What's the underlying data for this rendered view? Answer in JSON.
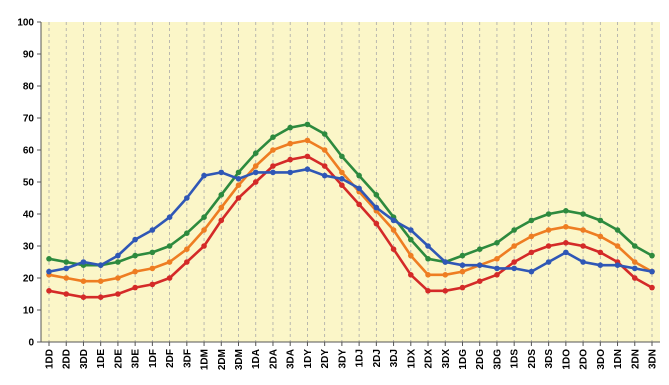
{
  "chart_data": {
    "type": "line",
    "title": "",
    "xlabel": "",
    "ylabel": "",
    "ylim": [
      0,
      100
    ],
    "yticks": [
      0,
      10,
      20,
      30,
      40,
      50,
      60,
      70,
      80,
      90,
      100
    ],
    "grid": "vertical dashed only",
    "legend": "none",
    "plot_background": "#fbf6c8",
    "categories": [
      "1DD",
      "2DD",
      "3DD",
      "1DE",
      "2DE",
      "3DE",
      "1DF",
      "2DF",
      "3DF",
      "1DM",
      "2DM",
      "3DM",
      "1DA",
      "2DA",
      "3DA",
      "1DY",
      "2DY",
      "3DY",
      "1DJ",
      "2DJ",
      "3DJ",
      "1DX",
      "2DX",
      "3DX",
      "1DG",
      "2DG",
      "3DG",
      "1DS",
      "2DS",
      "3DS",
      "1DO",
      "2DO",
      "3DO",
      "1DN",
      "2DN",
      "3DN"
    ],
    "series": [
      {
        "color": "#2d8a3e",
        "values": [
          26,
          25,
          24,
          24,
          25,
          27,
          28,
          30,
          34,
          39,
          46,
          53,
          59,
          64,
          67,
          68,
          65,
          58,
          52,
          46,
          39,
          32,
          26,
          25,
          27,
          29,
          31,
          35,
          38,
          40,
          41,
          40,
          38,
          35,
          30,
          27
        ]
      },
      {
        "color": "#ee7d22",
        "values": [
          21,
          20,
          19,
          19,
          20,
          22,
          23,
          25,
          29,
          35,
          42,
          49,
          55,
          60,
          62,
          63,
          60,
          53,
          47,
          41,
          35,
          27,
          21,
          21,
          22,
          24,
          26,
          30,
          33,
          35,
          36,
          35,
          33,
          30,
          25,
          22
        ]
      },
      {
        "color": "#d42a28",
        "values": [
          16,
          15,
          14,
          14,
          15,
          17,
          18,
          20,
          25,
          30,
          38,
          45,
          50,
          55,
          57,
          58,
          55,
          49,
          43,
          37,
          29,
          21,
          16,
          16,
          17,
          19,
          21,
          25,
          28,
          30,
          31,
          30,
          28,
          25,
          20,
          17
        ]
      },
      {
        "color": "#2f57b6",
        "values": [
          22,
          23,
          25,
          24,
          27,
          32,
          35,
          39,
          45,
          52,
          53,
          51,
          53,
          53,
          53,
          54,
          52,
          51,
          48,
          42,
          38,
          35,
          30,
          25,
          24,
          24,
          23,
          23,
          22,
          25,
          28,
          25,
          24,
          24,
          23,
          22
        ]
      }
    ]
  }
}
